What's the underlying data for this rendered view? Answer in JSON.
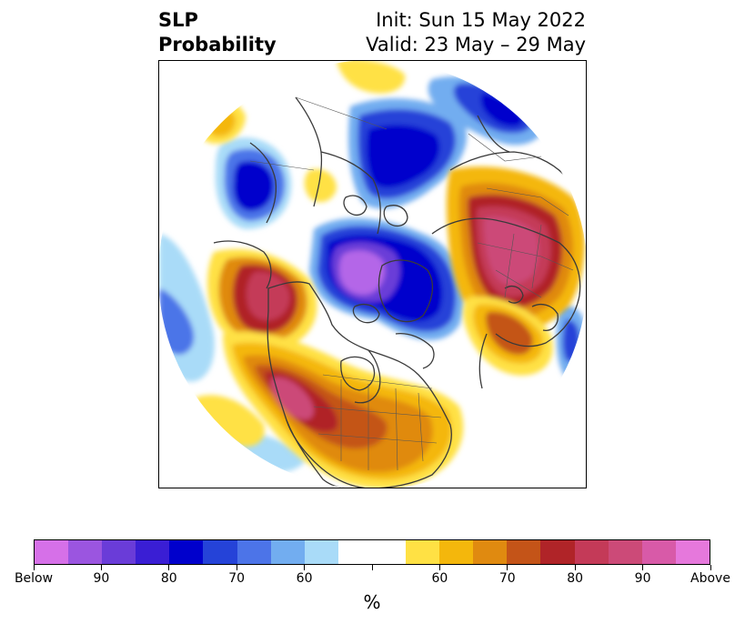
{
  "title": {
    "left_line1": "SLP",
    "left_line2": "Probability",
    "init": "Init: Sun 15 May 2022",
    "valid": "Valid: 23 May – 29 May"
  },
  "colorbar": {
    "colors": [
      "#d670e8",
      "#9b55e0",
      "#6a3cd8",
      "#3a1ed4",
      "#0000cc",
      "#2543d8",
      "#4c74e8",
      "#72adf0",
      "#a9dbf8",
      "#ffffff",
      "#ffffff",
      "#ffe144",
      "#f4b70c",
      "#e08a10",
      "#c45418",
      "#b02428",
      "#c43a58",
      "#cc4a78",
      "#d85aa8",
      "#e678dc"
    ],
    "tick_labels": [
      "Below",
      "90",
      "80",
      "70",
      "60",
      "",
      "60",
      "70",
      "80",
      "90",
      "Above"
    ],
    "unit": "%"
  }
}
